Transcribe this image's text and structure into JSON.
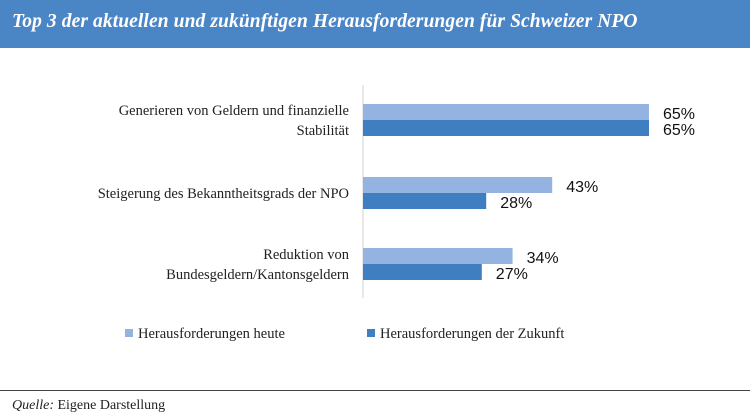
{
  "header": {
    "title": "Top 3 der aktuellen und zukünftigen Herausforderungen für Schweizer NPO"
  },
  "footer": {
    "source_label": "Quelle:",
    "source_text": "Eigene Darstellung"
  },
  "colors": {
    "title_bar": "#4a86c6",
    "series_today": "#95b3e0",
    "series_future": "#3f7fc1"
  },
  "chart_data": {
    "type": "bar",
    "orientation": "horizontal",
    "title": "Top 3 der aktuellen und zukünftigen Herausforderungen für Schweizer NPO",
    "categories": [
      [
        "Generieren von Geldern und finanzielle",
        "Stabilität"
      ],
      [
        "Steigerung des Bekanntheitsgrads der NPO"
      ],
      [
        "Reduktion von",
        "Bundesgeldern/Kantonsgeldern"
      ]
    ],
    "series": [
      {
        "name": "Herausforderungen heute",
        "values": [
          65,
          43,
          34
        ],
        "labels": [
          "65%",
          "43%",
          "34%"
        ]
      },
      {
        "name": "Herausforderungen der Zukunft",
        "values": [
          65,
          28,
          27
        ],
        "labels": [
          "65%",
          "28%",
          "27%"
        ]
      }
    ],
    "xlim": [
      0,
      100
    ],
    "unit": "%",
    "grid": false,
    "legend_position": "bottom"
  }
}
